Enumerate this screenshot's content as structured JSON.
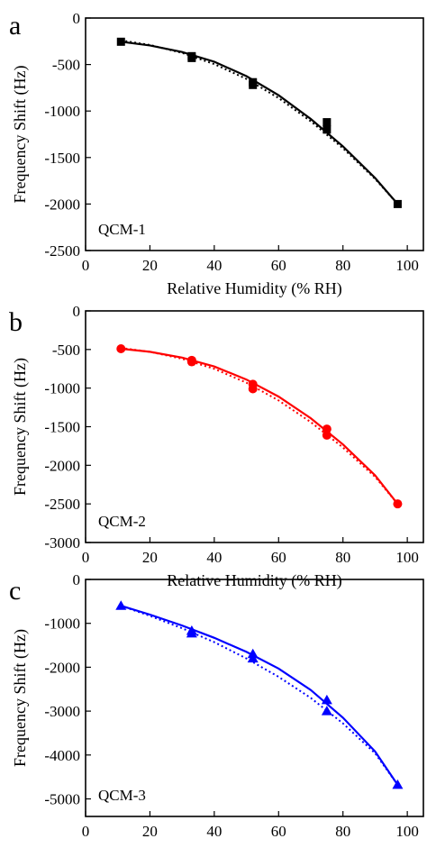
{
  "chart_data": [
    {
      "type": "scatter",
      "panel_label": "a",
      "annotation": "QCM-1",
      "xlabel": "Relative Humidity (% RH)",
      "ylabel": "Frequency Shift (Hz)",
      "xlim": [
        0,
        105
      ],
      "ylim": [
        -2500,
        0
      ],
      "xticks": [
        0,
        20,
        40,
        60,
        80,
        100
      ],
      "yticks": [
        0,
        -500,
        -1000,
        -1500,
        -2000,
        -2500
      ],
      "color": "#000000",
      "marker": "square",
      "points": [
        {
          "x": 11,
          "y": -255
        },
        {
          "x": 33,
          "y": -410
        },
        {
          "x": 33,
          "y": -430
        },
        {
          "x": 52,
          "y": -690
        },
        {
          "x": 52,
          "y": -720
        },
        {
          "x": 75,
          "y": -1120
        },
        {
          "x": 75,
          "y": -1200
        },
        {
          "x": 97,
          "y": -2000
        }
      ],
      "fit_solid": [
        {
          "x": 11,
          "y": -255
        },
        {
          "x": 20,
          "y": -295
        },
        {
          "x": 30,
          "y": -365
        },
        {
          "x": 40,
          "y": -470
        },
        {
          "x": 50,
          "y": -625
        },
        {
          "x": 60,
          "y": -830
        },
        {
          "x": 70,
          "y": -1085
        },
        {
          "x": 80,
          "y": -1380
        },
        {
          "x": 90,
          "y": -1720
        },
        {
          "x": 97,
          "y": -2000
        }
      ],
      "fit_dotted": [
        {
          "x": 11,
          "y": -240
        },
        {
          "x": 20,
          "y": -290
        },
        {
          "x": 30,
          "y": -375
        },
        {
          "x": 40,
          "y": -495
        },
        {
          "x": 50,
          "y": -655
        },
        {
          "x": 60,
          "y": -860
        },
        {
          "x": 70,
          "y": -1110
        },
        {
          "x": 80,
          "y": -1400
        },
        {
          "x": 90,
          "y": -1730
        },
        {
          "x": 97,
          "y": -2000
        }
      ]
    },
    {
      "type": "scatter",
      "panel_label": "b",
      "annotation": "QCM-2",
      "xlabel": "Relative Humidity (% RH)",
      "ylabel": "Frequency Shift (Hz)",
      "xlim": [
        0,
        105
      ],
      "ylim": [
        -3000,
        0
      ],
      "xticks": [
        0,
        20,
        40,
        60,
        80,
        100
      ],
      "yticks": [
        0,
        -500,
        -1000,
        -1500,
        -2000,
        -2500,
        -3000
      ],
      "color": "#ff0000",
      "marker": "circle",
      "points": [
        {
          "x": 11,
          "y": -490
        },
        {
          "x": 33,
          "y": -640
        },
        {
          "x": 33,
          "y": -660
        },
        {
          "x": 52,
          "y": -950
        },
        {
          "x": 52,
          "y": -1010
        },
        {
          "x": 75,
          "y": -1530
        },
        {
          "x": 75,
          "y": -1610
        },
        {
          "x": 97,
          "y": -2500
        }
      ],
      "fit_solid": [
        {
          "x": 11,
          "y": -490
        },
        {
          "x": 20,
          "y": -530
        },
        {
          "x": 30,
          "y": -605
        },
        {
          "x": 40,
          "y": -720
        },
        {
          "x": 50,
          "y": -890
        },
        {
          "x": 60,
          "y": -1110
        },
        {
          "x": 70,
          "y": -1390
        },
        {
          "x": 80,
          "y": -1730
        },
        {
          "x": 90,
          "y": -2130
        },
        {
          "x": 97,
          "y": -2500
        }
      ],
      "fit_dotted": [
        {
          "x": 11,
          "y": -480
        },
        {
          "x": 20,
          "y": -530
        },
        {
          "x": 30,
          "y": -620
        },
        {
          "x": 40,
          "y": -750
        },
        {
          "x": 50,
          "y": -930
        },
        {
          "x": 60,
          "y": -1160
        },
        {
          "x": 70,
          "y": -1440
        },
        {
          "x": 80,
          "y": -1770
        },
        {
          "x": 90,
          "y": -2150
        },
        {
          "x": 97,
          "y": -2500
        }
      ]
    },
    {
      "type": "scatter",
      "panel_label": "c",
      "annotation": "QCM-3",
      "xlabel": "",
      "ylabel": "Frequency Shift (Hz)",
      "xlim": [
        0,
        105
      ],
      "ylim": [
        -5400,
        0
      ],
      "xticks": [
        0,
        20,
        40,
        60,
        80,
        100
      ],
      "yticks": [
        0,
        -1000,
        -2000,
        -3000,
        -4000,
        -5000
      ],
      "color": "#0000ff",
      "marker": "triangle",
      "points": [
        {
          "x": 11,
          "y": -600
        },
        {
          "x": 33,
          "y": -1170
        },
        {
          "x": 33,
          "y": -1230
        },
        {
          "x": 52,
          "y": -1700
        },
        {
          "x": 52,
          "y": -1800
        },
        {
          "x": 75,
          "y": -2750
        },
        {
          "x": 75,
          "y": -3000
        },
        {
          "x": 97,
          "y": -4680
        }
      ],
      "fit_solid": [
        {
          "x": 11,
          "y": -600
        },
        {
          "x": 20,
          "y": -800
        },
        {
          "x": 30,
          "y": -1050
        },
        {
          "x": 40,
          "y": -1330
        },
        {
          "x": 50,
          "y": -1650
        },
        {
          "x": 60,
          "y": -2030
        },
        {
          "x": 70,
          "y": -2520
        },
        {
          "x": 80,
          "y": -3150
        },
        {
          "x": 90,
          "y": -3920
        },
        {
          "x": 97,
          "y": -4680
        }
      ],
      "fit_dotted": [
        {
          "x": 11,
          "y": -600
        },
        {
          "x": 20,
          "y": -830
        },
        {
          "x": 30,
          "y": -1110
        },
        {
          "x": 40,
          "y": -1430
        },
        {
          "x": 50,
          "y": -1800
        },
        {
          "x": 60,
          "y": -2220
        },
        {
          "x": 70,
          "y": -2700
        },
        {
          "x": 80,
          "y": -3280
        },
        {
          "x": 90,
          "y": -3960
        },
        {
          "x": 97,
          "y": -4680
        }
      ]
    }
  ]
}
